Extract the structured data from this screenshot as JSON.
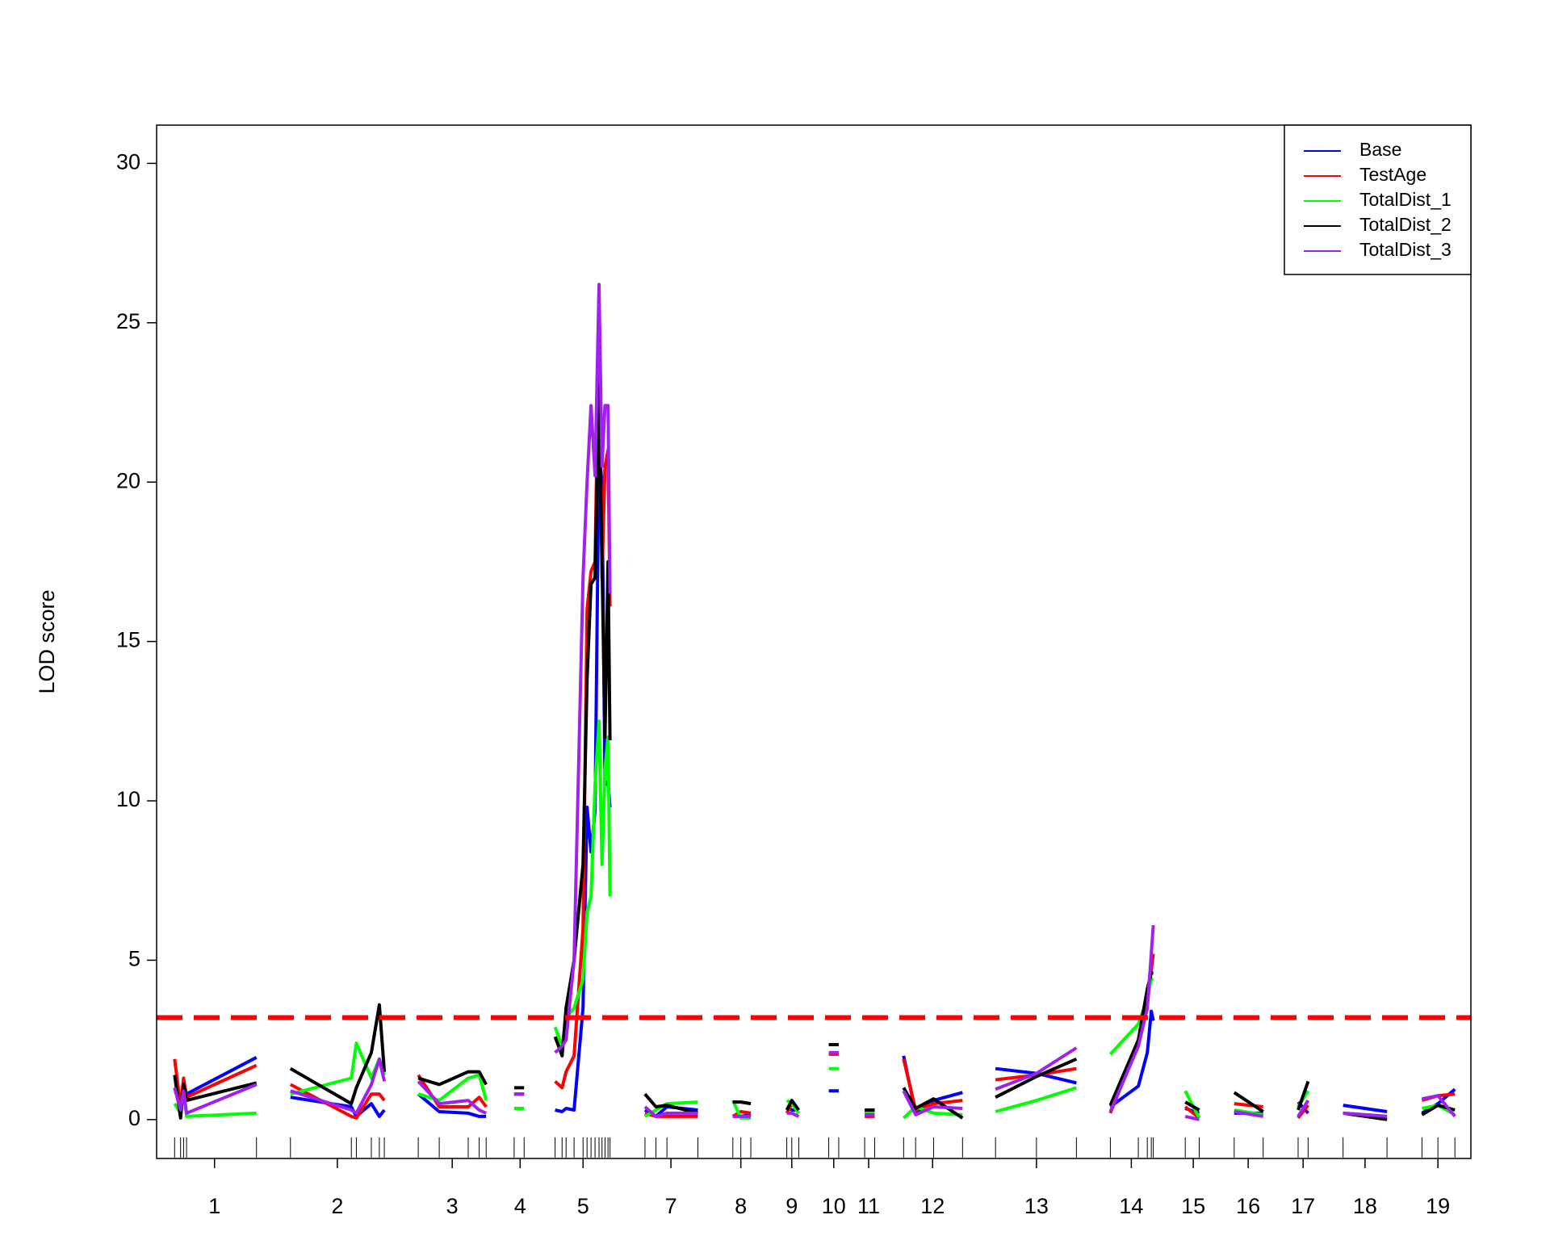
{
  "chart_data": {
    "type": "line",
    "ylabel": "LOD score",
    "xlim": [
      0,
      1316
    ],
    "ylim": [
      -1.22,
      31.2
    ],
    "yticks": [
      0,
      5,
      10,
      15,
      20,
      25,
      30
    ],
    "xticks": [
      {
        "value": 58,
        "label": "1"
      },
      {
        "value": 181,
        "label": "2"
      },
      {
        "value": 296,
        "label": "3"
      },
      {
        "value": 364,
        "label": "4"
      },
      {
        "value": 427,
        "label": "5"
      },
      {
        "value": 515,
        "label": "7"
      },
      {
        "value": 585,
        "label": "8"
      },
      {
        "value": 636,
        "label": "9"
      },
      {
        "value": 678,
        "label": "10"
      },
      {
        "value": 713,
        "label": "11"
      },
      {
        "value": 777,
        "label": "12"
      },
      {
        "value": 881,
        "label": "13"
      },
      {
        "value": 976,
        "label": "14"
      },
      {
        "value": 1038,
        "label": "15"
      },
      {
        "value": 1093,
        "label": "16"
      },
      {
        "value": 1148,
        "label": "17"
      },
      {
        "value": 1210,
        "label": "18"
      },
      {
        "value": 1283,
        "label": "19"
      }
    ],
    "threshold": 3.2,
    "threshold_color": "#ff0000",
    "legend": "topright",
    "x": [
      18,
      24,
      27,
      30,
      100,
      115,
      134,
      195,
      200,
      215,
      223,
      228,
      240,
      262,
      283,
      312,
      323,
      330,
      345,
      358,
      368,
      380,
      399,
      406,
      410,
      418,
      427,
      431,
      435,
      439,
      443,
      446,
      449,
      452,
      454,
      470,
      489,
      500,
      511,
      542,
      560,
      577,
      585,
      595,
      610,
      631,
      636,
      643,
      660,
      673,
      683,
      700,
      709,
      719,
      740,
      748,
      760,
      778,
      807,
      825,
      840,
      881,
      921,
      940,
      955,
      983,
      992,
      996,
      998,
      1015,
      1030,
      1044,
      1060,
      1079,
      1108,
      1125,
      1143,
      1153,
      1170,
      1188,
      1232,
      1250,
      1267,
      1283,
      1300
    ],
    "series": [
      {
        "name": "Base",
        "color": "#0000ff",
        "values": [
          1.0,
          0.3,
          1.2,
          0.8,
          1.95,
          null,
          0.7,
          0.4,
          0.1,
          0.5,
          0.1,
          0.3,
          null,
          0.8,
          0.25,
          0.2,
          0.1,
          0.1,
          null,
          0.8,
          0.8,
          null,
          0.3,
          0.25,
          0.35,
          0.3,
          3.5,
          9.8,
          8.4,
          9.7,
          21.0,
          20.0,
          10.5,
          10.6,
          9.8,
          null,
          0.3,
          0.1,
          0.4,
          0.3,
          null,
          0.1,
          0.1,
          0.15,
          null,
          0.4,
          0.3,
          0.3,
          null,
          0.9,
          0.9,
          null,
          0.25,
          0.25,
          null,
          2.0,
          0.2,
          0.6,
          0.85,
          null,
          1.6,
          1.45,
          1.15,
          null,
          0.4,
          1.05,
          2.1,
          3.4,
          3.1,
          null,
          0.35,
          0.2,
          null,
          0.2,
          0.2,
          null,
          0.55,
          0.2,
          null,
          0.45,
          0.25,
          null,
          0.2,
          0.5,
          0.95
        ]
      },
      {
        "name": "TestAge",
        "color": "#ff0000",
        "values": [
          1.9,
          0.4,
          1.3,
          0.7,
          1.7,
          null,
          1.1,
          0.1,
          0.05,
          0.8,
          0.8,
          0.6,
          null,
          1.4,
          0.4,
          0.4,
          0.7,
          0.4,
          null,
          0.8,
          0.8,
          null,
          1.2,
          1.0,
          1.5,
          2.0,
          6.0,
          16.0,
          17.2,
          17.5,
          25.0,
          17.0,
          20.5,
          21.0,
          16.1,
          null,
          0.2,
          0.1,
          0.1,
          0.1,
          null,
          0.1,
          0.25,
          0.2,
          null,
          0.2,
          0.5,
          0.2,
          null,
          2.05,
          2.05,
          null,
          0.1,
          0.1,
          null,
          1.9,
          0.3,
          0.5,
          0.6,
          null,
          1.25,
          1.4,
          1.6,
          null,
          0.2,
          2.4,
          3.6,
          4.7,
          5.2,
          null,
          0.4,
          0.05,
          null,
          0.5,
          0.4,
          null,
          0.05,
          0.45,
          null,
          0.2,
          0.1,
          null,
          0.6,
          0.75,
          0.8
        ]
      },
      {
        "name": "TotalDist_1",
        "color": "#00ff00",
        "values": [
          0.5,
          0.2,
          1.0,
          0.1,
          0.2,
          null,
          0.8,
          1.3,
          2.4,
          1.3,
          1.9,
          1.4,
          null,
          0.8,
          0.6,
          1.3,
          1.4,
          0.6,
          null,
          0.35,
          0.35,
          null,
          2.9,
          2.3,
          3.2,
          3.5,
          4.4,
          6.5,
          7.0,
          10.5,
          12.5,
          8.0,
          11.0,
          12.0,
          7.0,
          null,
          0.1,
          0.3,
          0.5,
          0.55,
          null,
          0.6,
          0.05,
          0.05,
          null,
          0.6,
          0.5,
          0.2,
          null,
          1.6,
          1.6,
          null,
          0.2,
          0.2,
          null,
          0.05,
          0.4,
          0.2,
          0.15,
          null,
          0.25,
          0.6,
          1.0,
          null,
          2.05,
          3.0,
          3.8,
          4.4,
          4.4,
          null,
          0.9,
          0.05,
          null,
          0.3,
          0.15,
          null,
          0.4,
          0.9,
          null,
          0.2,
          0.1,
          null,
          0.35,
          0.45,
          0.15
        ]
      },
      {
        "name": "TotalDist_2",
        "color": "#000000",
        "values": [
          1.4,
          0.05,
          1.1,
          0.6,
          1.15,
          null,
          1.6,
          0.5,
          1.0,
          2.1,
          3.6,
          1.5,
          null,
          1.3,
          1.1,
          1.5,
          1.5,
          1.1,
          null,
          1.0,
          1.0,
          null,
          2.6,
          2.0,
          3.5,
          5.0,
          8.0,
          13.8,
          16.8,
          17.0,
          23.0,
          17.5,
          12.0,
          17.5,
          11.9,
          null,
          0.8,
          0.4,
          0.45,
          0.2,
          null,
          0.55,
          0.55,
          0.5,
          null,
          0.3,
          0.6,
          0.3,
          null,
          2.35,
          2.35,
          null,
          0.3,
          0.3,
          null,
          1.0,
          0.35,
          0.65,
          0.05,
          null,
          0.7,
          1.35,
          1.9,
          null,
          0.45,
          2.5,
          4.1,
          4.6,
          4.6,
          null,
          0.55,
          0.3,
          null,
          0.85,
          0.25,
          null,
          0.3,
          1.2,
          null,
          0.2,
          0.0,
          null,
          0.15,
          0.45,
          0.3
        ]
      },
      {
        "name": "TotalDist_3",
        "color": "#a020f0",
        "values": [
          1.0,
          0.3,
          0.9,
          0.2,
          1.1,
          null,
          0.9,
          0.3,
          0.2,
          1.1,
          1.9,
          1.2,
          null,
          1.2,
          0.5,
          0.6,
          0.3,
          0.2,
          null,
          0.8,
          0.8,
          null,
          2.1,
          2.3,
          2.5,
          5.0,
          17.0,
          20.0,
          22.4,
          20.2,
          26.2,
          20.5,
          22.4,
          22.4,
          16.5,
          null,
          0.4,
          0.1,
          0.2,
          0.2,
          null,
          0.1,
          0.1,
          0.1,
          null,
          0.2,
          0.2,
          0.1,
          null,
          2.1,
          2.1,
          null,
          0.15,
          0.15,
          null,
          0.9,
          0.15,
          0.4,
          0.35,
          null,
          0.95,
          1.45,
          2.25,
          null,
          0.25,
          2.3,
          3.5,
          5.2,
          6.1,
          null,
          0.1,
          0.0,
          null,
          0.25,
          0.1,
          null,
          0.1,
          0.6,
          null,
          0.2,
          0.1,
          null,
          0.65,
          0.75,
          0.1
        ]
      }
    ]
  }
}
